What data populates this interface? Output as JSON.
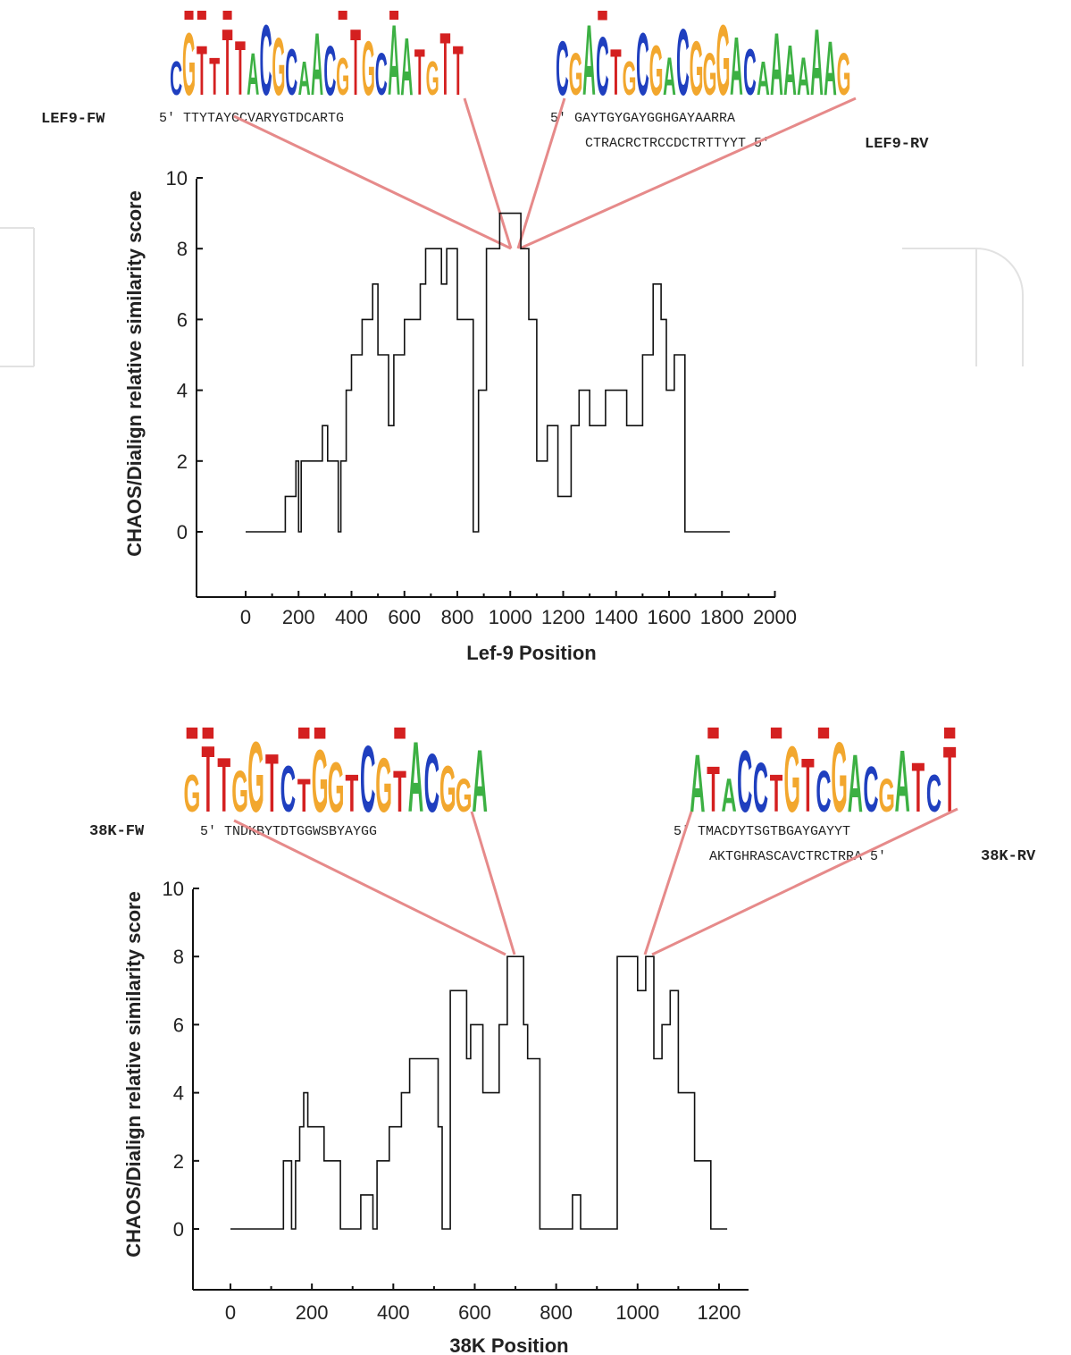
{
  "colors": {
    "A": "#3cb043",
    "C": "#1f3fbf",
    "G": "#f2a72e",
    "T": "#d42020",
    "callout": "#e68a8a",
    "trace": "#111111",
    "marker": "#d42020"
  },
  "panels": [
    {
      "xlabel": "Lef-9 Position",
      "ylabel": "CHAOS/Dialign relative similarity score",
      "forward_label": "LEF9-FW",
      "forward_seq": "5′ TTYTAYGCVARYGTDCARTG",
      "reverse_seq_top": "5′ GAYTGYGAYGGHGAYAARRA",
      "reverse_seq_bottom": "CTRACRCTRCCDCTRTTYYT 5′",
      "reverse_label": "LEF9-RV",
      "logo_left_letters": "CGTTTTACGCAACGTGCAATGTT",
      "logo_right_letters": "CGACTGCGACGGGACAAAAAAG",
      "logo_left_markers": [
        1,
        2,
        4,
        13,
        17
      ],
      "logo_right_markers": [
        3
      ]
    },
    {
      "xlabel": "38K Position",
      "ylabel": "CHAOS/Dialign relative similarity score",
      "forward_label": "38K-FW",
      "forward_seq": "5′ TNDKBYTDTGGWSBYAYGG",
      "reverse_seq_top": "5′ TMACDYTSGTBGAYGAYYT",
      "reverse_seq_bottom": "AKTGHRASCAVCTRCTRRA 5′",
      "reverse_label": "38K-RV",
      "logo_left_letters": "GTTGGTCTGGTCGTACGGA",
      "logo_right_letters": "ATACCTGTCGACGATCT",
      "logo_left_markers": [
        0,
        1,
        7,
        8,
        13
      ],
      "logo_right_markers": [
        1,
        5,
        8,
        16
      ]
    }
  ],
  "chart_data": [
    {
      "type": "line",
      "xlabel": "Lef-9 Position",
      "ylabel": "CHAOS/Dialign relative similarity score",
      "xlim": [
        -200,
        2000
      ],
      "ylim": [
        -1.8,
        10
      ],
      "xticks": [
        0,
        200,
        400,
        600,
        800,
        1000,
        1200,
        1400,
        1600,
        1800,
        2000
      ],
      "yticks": [
        0,
        2,
        4,
        6,
        8,
        10
      ],
      "grid": false,
      "series": [
        {
          "x": [
            0,
            150,
            150,
            190,
            190,
            200,
            200,
            210,
            210,
            290,
            290,
            310,
            310,
            350,
            350,
            360,
            360,
            380,
            380,
            400,
            400,
            440,
            440,
            480,
            480,
            500,
            500,
            540,
            540,
            560,
            560,
            600,
            600,
            660,
            660,
            680,
            680,
            740,
            740,
            760,
            760,
            800,
            800,
            860,
            860,
            880,
            880,
            910,
            910,
            960,
            960,
            1040,
            1040,
            1070,
            1070,
            1100,
            1100,
            1140,
            1140,
            1180,
            1180,
            1230,
            1230,
            1260,
            1260,
            1300,
            1300,
            1360,
            1360,
            1440,
            1440,
            1500,
            1500,
            1540,
            1540,
            1570,
            1570,
            1590,
            1590,
            1620,
            1620,
            1660,
            1660,
            1700,
            1700,
            1830
          ],
          "y": [
            0,
            0,
            1,
            1,
            2,
            2,
            0,
            0,
            2,
            2,
            3,
            3,
            2,
            2,
            0,
            0,
            2,
            2,
            4,
            4,
            5,
            5,
            6,
            6,
            7,
            7,
            5,
            5,
            3,
            3,
            5,
            5,
            6,
            6,
            7,
            7,
            8,
            8,
            7,
            7,
            8,
            8,
            6,
            6,
            0,
            0,
            4,
            4,
            8,
            8,
            9,
            9,
            8,
            8,
            6,
            6,
            2,
            2,
            3,
            3,
            1,
            1,
            3,
            3,
            4,
            4,
            3,
            3,
            4,
            4,
            3,
            3,
            5,
            5,
            7,
            7,
            6,
            6,
            4,
            4,
            5,
            5,
            0,
            0,
            0,
            0
          ]
        }
      ]
    },
    {
      "type": "line",
      "xlabel": "38K Position",
      "ylabel": "CHAOS/Dialign relative similarity score",
      "xlim": [
        -100,
        1270
      ],
      "ylim": [
        -1.8,
        10
      ],
      "xticks": [
        0,
        200,
        400,
        600,
        800,
        1000,
        1200
      ],
      "yticks": [
        0,
        2,
        4,
        6,
        8,
        10
      ],
      "grid": false,
      "series": [
        {
          "x": [
            0,
            130,
            130,
            150,
            150,
            160,
            160,
            170,
            170,
            180,
            180,
            190,
            190,
            230,
            230,
            270,
            270,
            320,
            320,
            350,
            350,
            360,
            360,
            390,
            390,
            420,
            420,
            440,
            440,
            510,
            510,
            520,
            520,
            540,
            540,
            540,
            540,
            580,
            580,
            590,
            590,
            620,
            620,
            660,
            660,
            680,
            680,
            720,
            720,
            730,
            730,
            760,
            760,
            790,
            790,
            820,
            820,
            840,
            840,
            860,
            860,
            900,
            900,
            950,
            950,
            980,
            980,
            1000,
            1000,
            1020,
            1020,
            1030,
            1030,
            1040,
            1040,
            1060,
            1060,
            1080,
            1080,
            1100,
            1100,
            1140,
            1140,
            1180,
            1180,
            1200,
            1200,
            1220
          ],
          "y": [
            0,
            0,
            2,
            2,
            0,
            0,
            2,
            2,
            3,
            3,
            4,
            4,
            3,
            3,
            2,
            2,
            0,
            0,
            1,
            1,
            0,
            0,
            2,
            2,
            3,
            3,
            4,
            4,
            5,
            5,
            3,
            3,
            0,
            0,
            6,
            6,
            7,
            7,
            5,
            5,
            6,
            6,
            4,
            4,
            6,
            6,
            8,
            8,
            6,
            6,
            5,
            5,
            0,
            0,
            0,
            0,
            0,
            0,
            1,
            1,
            0,
            0,
            0,
            0,
            8,
            8,
            8,
            8,
            7,
            7,
            8,
            8,
            8,
            8,
            5,
            5,
            6,
            6,
            7,
            7,
            4,
            4,
            2,
            2,
            0,
            0,
            0,
            0
          ]
        }
      ]
    }
  ]
}
